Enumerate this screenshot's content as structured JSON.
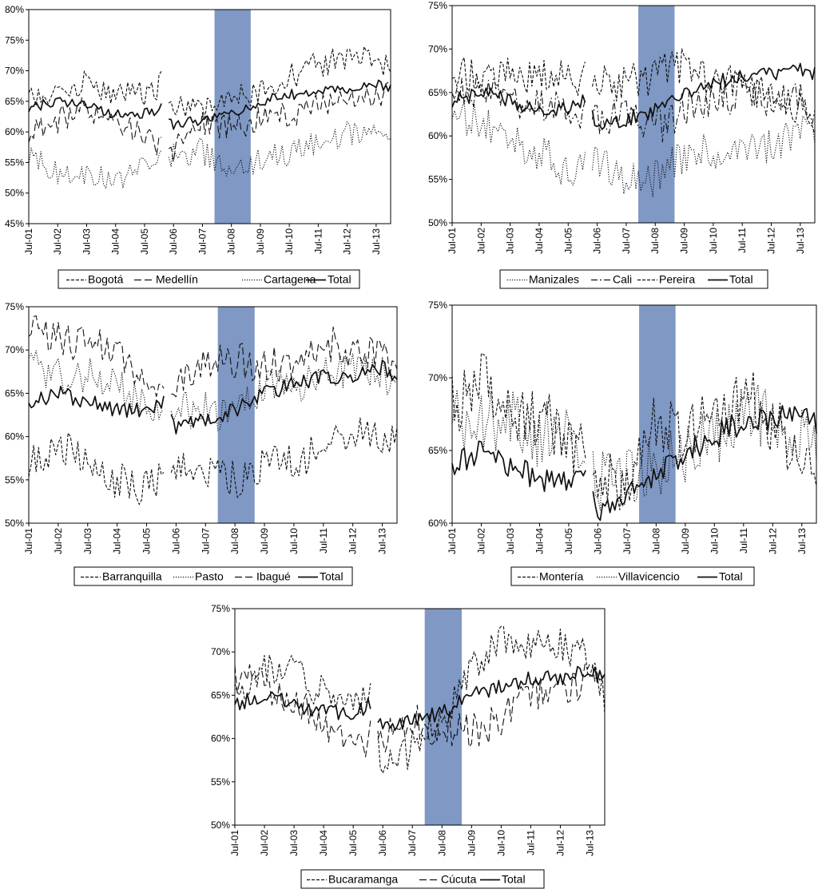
{
  "chart_data": [
    {
      "type": "line",
      "x_ticks": [
        "Jul-01",
        "Jul-02",
        "Jul-03",
        "Jul-04",
        "Jul-05",
        "Jul-06",
        "Jul-07",
        "Jul-08",
        "Jul-09",
        "Jul-10",
        "Jul-11",
        "Jul-12",
        "Jul-13"
      ],
      "x_range": [
        "2001-07",
        "2014-01"
      ],
      "y_ticks": [
        "45%",
        "50%",
        "55%",
        "60%",
        "65%",
        "70%",
        "75%",
        "80%"
      ],
      "ylim": [
        45,
        80
      ],
      "shaded_period": [
        "2007-12",
        "2009-03"
      ],
      "shade_color": "#7f98c4",
      "legend_position": "bottom",
      "series": [
        {
          "name": "Bogotá",
          "style": "dashed",
          "values": {
            "2001-07": 65,
            "2002-07": 67,
            "2003-07": 68,
            "2004-07": 66,
            "2005-07": 66,
            "2006-02": 68,
            "2006-07": 64,
            "2007-07": 64,
            "2008-07": 65,
            "2009-07": 67,
            "2010-07": 69,
            "2011-07": 71,
            "2012-07": 72,
            "2013-07": 72,
            "2013-12": 71
          }
        },
        {
          "name": "Medellín",
          "style": "long-dash",
          "values": {
            "2001-07": 60,
            "2002-07": 62,
            "2003-07": 64,
            "2004-07": 62,
            "2005-07": 59,
            "2006-07": 57,
            "2007-07": 61,
            "2008-07": 61,
            "2009-07": 62,
            "2010-07": 63,
            "2011-07": 64,
            "2012-07": 65,
            "2013-07": 66,
            "2013-12": 66
          }
        },
        {
          "name": "Cartagena",
          "style": "dotted",
          "values": {
            "2001-07": 56,
            "2002-07": 53,
            "2003-07": 53,
            "2004-07": 52,
            "2005-07": 54,
            "2006-07": 56,
            "2007-07": 57,
            "2008-07": 52,
            "2009-07": 56,
            "2010-07": 56,
            "2011-07": 58,
            "2012-07": 60,
            "2013-07": 59,
            "2013-12": 58
          }
        },
        {
          "name": "Total",
          "style": "solid",
          "values": {
            "2001-07": 64,
            "2002-07": 65,
            "2003-07": 64,
            "2004-07": 63,
            "2005-07": 63,
            "2006-02": 64,
            "2006-07": 61,
            "2007-07": 62,
            "2008-07": 63,
            "2009-07": 65,
            "2010-07": 66,
            "2011-07": 67,
            "2012-07": 67,
            "2013-07": 68,
            "2013-12": 67
          }
        }
      ]
    },
    {
      "type": "line",
      "x_ticks": [
        "Jul-01",
        "Jul-02",
        "Jul-03",
        "Jul-04",
        "Jul-05",
        "Jul-06",
        "Jul-07",
        "Jul-08",
        "Jul-09",
        "Jul-10",
        "Jul-11",
        "Jul-12",
        "Jul-13"
      ],
      "x_range": [
        "2001-07",
        "2014-01"
      ],
      "y_ticks": [
        "50%",
        "55%",
        "60%",
        "65%",
        "70%",
        "75%"
      ],
      "ylim": [
        50,
        75
      ],
      "shaded_period": [
        "2007-12",
        "2009-03"
      ],
      "shade_color": "#7f98c4",
      "legend_position": "bottom",
      "series": [
        {
          "name": "Manizales",
          "style": "dotted",
          "values": {
            "2001-07": 62,
            "2002-07": 62,
            "2003-07": 60,
            "2004-07": 58,
            "2005-07": 56,
            "2006-07": 57,
            "2007-07": 55,
            "2008-07": 55,
            "2009-07": 58,
            "2010-07": 58,
            "2011-07": 59,
            "2012-07": 59,
            "2013-07": 60,
            "2013-12": 61
          }
        },
        {
          "name": "Cali",
          "style": "dash-dot",
          "values": {
            "2001-07": 66,
            "2002-07": 65,
            "2003-07": 64,
            "2004-07": 63,
            "2005-07": 63,
            "2006-07": 62,
            "2007-07": 62,
            "2008-07": 61,
            "2009-07": 63,
            "2010-07": 64,
            "2011-07": 65,
            "2012-07": 64,
            "2013-07": 64,
            "2013-12": 63
          }
        },
        {
          "name": "Pereira",
          "style": "dashed",
          "values": {
            "2001-07": 67,
            "2002-07": 67,
            "2003-07": 67,
            "2004-07": 67,
            "2005-07": 67,
            "2006-07": 66,
            "2007-07": 66,
            "2008-07": 67,
            "2009-07": 68,
            "2010-07": 66,
            "2011-07": 66,
            "2012-07": 65,
            "2013-07": 63,
            "2013-12": 62
          }
        },
        {
          "name": "Total",
          "style": "solid",
          "values": {
            "2001-07": 64,
            "2002-07": 65,
            "2003-07": 64,
            "2004-07": 63,
            "2005-07": 63,
            "2006-02": 64,
            "2006-07": 61,
            "2007-07": 62,
            "2008-07": 63,
            "2009-07": 65,
            "2010-07": 66,
            "2011-07": 67,
            "2012-07": 67,
            "2013-07": 68,
            "2013-12": 67
          }
        }
      ]
    },
    {
      "type": "line",
      "x_ticks": [
        "Jul-01",
        "Jul-02",
        "Jul-03",
        "Jul-04",
        "Jul-05",
        "Jul-06",
        "Jul-07",
        "Jul-08",
        "Jul-09",
        "Jul-10",
        "Jul-11",
        "Jul-12",
        "Jul-13"
      ],
      "x_range": [
        "2001-07",
        "2014-01"
      ],
      "y_ticks": [
        "50%",
        "55%",
        "60%",
        "65%",
        "70%",
        "75%"
      ],
      "ylim": [
        50,
        75
      ],
      "shaded_period": [
        "2007-12",
        "2009-03"
      ],
      "shade_color": "#7f98c4",
      "legend_position": "bottom",
      "series": [
        {
          "name": "Barranquilla",
          "style": "dashed",
          "values": {
            "2001-07": 57,
            "2002-07": 59,
            "2003-07": 57,
            "2004-07": 55,
            "2005-07": 54,
            "2006-07": 56,
            "2007-07": 56,
            "2008-07": 55,
            "2009-07": 57,
            "2010-07": 57,
            "2011-07": 59,
            "2012-07": 61,
            "2013-07": 60,
            "2013-12": 59
          }
        },
        {
          "name": "Pasto",
          "style": "dotted",
          "values": {
            "2001-07": 68,
            "2002-07": 67,
            "2003-07": 67,
            "2004-07": 66,
            "2005-07": 64,
            "2006-07": 63,
            "2007-07": 63,
            "2008-07": 62,
            "2009-07": 66,
            "2010-07": 66,
            "2011-07": 67,
            "2012-07": 68,
            "2013-07": 67,
            "2013-12": 67
          }
        },
        {
          "name": "Ibagué",
          "style": "long-dash",
          "values": {
            "2001-07": 72,
            "2002-07": 71,
            "2003-07": 71,
            "2004-07": 70,
            "2005-07": 67,
            "2006-07": 66,
            "2007-07": 68,
            "2008-07": 69,
            "2009-07": 68,
            "2010-07": 69,
            "2011-07": 71,
            "2012-07": 70,
            "2013-07": 69,
            "2013-12": 68
          }
        },
        {
          "name": "Total",
          "style": "solid",
          "values": {
            "2001-07": 64,
            "2002-07": 65,
            "2003-07": 64,
            "2004-07": 63,
            "2005-07": 63,
            "2006-02": 64,
            "2006-07": 61,
            "2007-07": 62,
            "2008-07": 63,
            "2009-07": 65,
            "2010-07": 66,
            "2011-07": 67,
            "2012-07": 67,
            "2013-07": 68,
            "2013-12": 67
          }
        }
      ]
    },
    {
      "type": "line",
      "x_ticks": [
        "Jul-01",
        "Jul-02",
        "Jul-03",
        "Jul-04",
        "Jul-05",
        "Jul-06",
        "Jul-07",
        "Jul-08",
        "Jul-09",
        "Jul-10",
        "Jul-11",
        "Jul-12",
        "Jul-13"
      ],
      "x_range": [
        "2001-07",
        "2014-01"
      ],
      "y_ticks": [
        "60%",
        "65%",
        "70%",
        "75%"
      ],
      "ylim": [
        60,
        75
      ],
      "shaded_period": [
        "2007-12",
        "2009-03"
      ],
      "shade_color": "#7f98c4",
      "legend_position": "bottom",
      "series": [
        {
          "name": "Montería",
          "style": "dashed",
          "values": {
            "2001-07": 68,
            "2002-07": 70,
            "2003-07": 68,
            "2004-07": 67,
            "2005-07": 66,
            "2006-07": 63,
            "2007-07": 63,
            "2008-07": 67,
            "2009-07": 66,
            "2010-07": 67,
            "2011-07": 69,
            "2012-07": 67,
            "2013-07": 64,
            "2013-12": 63
          }
        },
        {
          "name": "Villavicencio",
          "style": "dotted",
          "values": {
            "2001-07": 67,
            "2002-07": 67,
            "2003-07": 67,
            "2004-07": 66,
            "2005-07": 67,
            "2006-07": 63,
            "2007-07": 63,
            "2008-07": 64,
            "2009-07": 65,
            "2010-07": 66,
            "2011-07": 68,
            "2012-07": 67,
            "2013-07": 66,
            "2013-12": 65
          }
        },
        {
          "name": "Total",
          "style": "solid",
          "values": {
            "2001-07": 64,
            "2002-07": 65,
            "2003-07": 64,
            "2004-07": 63,
            "2005-07": 63,
            "2006-02": 64,
            "2006-07": 61,
            "2007-07": 62,
            "2008-07": 63,
            "2009-07": 65,
            "2010-07": 66,
            "2011-07": 67,
            "2012-07": 67,
            "2013-07": 68,
            "2013-12": 67
          }
        }
      ]
    },
    {
      "type": "line",
      "x_ticks": [
        "Jul-01",
        "Jul-02",
        "Jul-03",
        "Jul-04",
        "Jul-05",
        "Jul-06",
        "Jul-07",
        "Jul-08",
        "Jul-09",
        "Jul-10",
        "Jul-11",
        "Jul-12",
        "Jul-13"
      ],
      "x_range": [
        "2001-07",
        "2014-01"
      ],
      "y_ticks": [
        "50%",
        "55%",
        "60%",
        "65%",
        "70%",
        "75%"
      ],
      "ylim": [
        50,
        75
      ],
      "shaded_period": [
        "2007-12",
        "2009-03"
      ],
      "shade_color": "#7f98c4",
      "legend_position": "bottom",
      "series": [
        {
          "name": "Bucaramanga",
          "style": "dashed",
          "values": {
            "2001-07": 66,
            "2002-07": 68,
            "2003-07": 68,
            "2004-07": 65,
            "2005-07": 64,
            "2006-02": 65,
            "2006-07": 56,
            "2007-07": 59,
            "2008-07": 62,
            "2009-07": 69,
            "2010-07": 71,
            "2011-07": 71,
            "2012-07": 71,
            "2013-07": 69,
            "2013-12": 65
          }
        },
        {
          "name": "Cúcuta",
          "style": "long-dash",
          "values": {
            "2001-07": 67,
            "2002-07": 66,
            "2003-07": 64,
            "2004-07": 62,
            "2005-07": 60,
            "2006-07": 60,
            "2007-07": 62,
            "2008-07": 61,
            "2009-07": 61,
            "2010-07": 62,
            "2011-07": 65,
            "2012-07": 66,
            "2013-07": 67,
            "2013-12": 67
          }
        },
        {
          "name": "Total",
          "style": "solid",
          "values": {
            "2001-07": 64,
            "2002-07": 65,
            "2003-07": 64,
            "2004-07": 63,
            "2005-07": 63,
            "2006-02": 64,
            "2006-07": 61,
            "2007-07": 62,
            "2008-07": 63,
            "2009-07": 65,
            "2010-07": 66,
            "2011-07": 67,
            "2012-07": 67,
            "2013-07": 68,
            "2013-12": 67
          }
        }
      ]
    }
  ]
}
